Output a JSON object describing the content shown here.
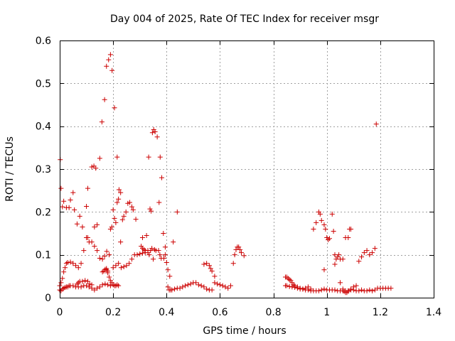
{
  "chart_data": {
    "type": "scatter",
    "title": "Day 004 of 2025, Rate Of TEC Index for receiver msgr",
    "xlabel": "GPS time / hours",
    "ylabel": "ROTI / TECUs",
    "xlim": [
      0,
      1.4
    ],
    "ylim": [
      0,
      0.6
    ],
    "xticks": [
      0,
      0.2,
      0.4,
      0.6,
      0.8,
      1,
      1.2,
      1.4
    ],
    "xtick_labels": [
      "0",
      "0.2",
      "0.4",
      "0.6",
      "0.8",
      "1",
      "1.2",
      "1.4"
    ],
    "yticks": [
      0,
      0.1,
      0.2,
      0.3,
      0.4,
      0.5,
      0.6
    ],
    "ytick_labels": [
      "0",
      "0.1",
      "0.2",
      "0.3",
      "0.4",
      "0.5",
      "0.6"
    ],
    "grid": true,
    "marker": "+",
    "marker_color": "#cc0000",
    "series": [
      {
        "name": "ROTI",
        "points": [
          [
            0.002,
            0.322
          ],
          [
            0.005,
            0.255
          ],
          [
            0.01,
            0.212
          ],
          [
            0.015,
            0.225
          ],
          [
            0.025,
            0.21
          ],
          [
            0.035,
            0.21
          ],
          [
            0.04,
            0.228
          ],
          [
            0.05,
            0.245
          ],
          [
            0.055,
            0.205
          ],
          [
            0.065,
            0.172
          ],
          [
            0.075,
            0.19
          ],
          [
            0.085,
            0.165
          ],
          [
            0.1,
            0.213
          ],
          [
            0.105,
            0.255
          ],
          [
            0.12,
            0.305
          ],
          [
            0.128,
            0.307
          ],
          [
            0.135,
            0.302
          ],
          [
            0.14,
            0.17
          ],
          [
            0.13,
            0.165
          ],
          [
            0.15,
            0.325
          ],
          [
            0.158,
            0.41
          ],
          [
            0.168,
            0.462
          ],
          [
            0.175,
            0.54
          ],
          [
            0.183,
            0.555
          ],
          [
            0.19,
            0.567
          ],
          [
            0.196,
            0.53
          ],
          [
            0.205,
            0.443
          ],
          [
            0.215,
            0.328
          ],
          [
            0.222,
            0.252
          ],
          [
            0.228,
            0.245
          ],
          [
            0.235,
            0.182
          ],
          [
            0.24,
            0.19
          ],
          [
            0.248,
            0.2
          ],
          [
            0.255,
            0.22
          ],
          [
            0.262,
            0.222
          ],
          [
            0.27,
            0.212
          ],
          [
            0.275,
            0.205
          ],
          [
            0.285,
            0.183
          ],
          [
            0.31,
            0.14
          ],
          [
            0.325,
            0.145
          ],
          [
            0.333,
            0.328
          ],
          [
            0.338,
            0.207
          ],
          [
            0.342,
            0.202
          ],
          [
            0.347,
            0.385
          ],
          [
            0.352,
            0.392
          ],
          [
            0.357,
            0.387
          ],
          [
            0.365,
            0.375
          ],
          [
            0.372,
            0.222
          ],
          [
            0.376,
            0.328
          ],
          [
            0.382,
            0.28
          ],
          [
            0.388,
            0.15
          ],
          [
            0.395,
            0.118
          ],
          [
            0.4,
            0.082
          ],
          [
            0.405,
            0.065
          ],
          [
            0.412,
            0.05
          ],
          [
            0.425,
            0.13
          ],
          [
            0.44,
            0.2
          ],
          [
            0.175,
            0.065
          ],
          [
            0.18,
            0.062
          ],
          [
            0.185,
            0.1
          ],
          [
            0.19,
            0.16
          ],
          [
            0.195,
            0.165
          ],
          [
            0.2,
            0.205
          ],
          [
            0.205,
            0.185
          ],
          [
            0.21,
            0.175
          ],
          [
            0.215,
            0.222
          ],
          [
            0.22,
            0.23
          ],
          [
            0.228,
            0.13
          ],
          [
            0.0,
            0.028
          ],
          [
            0.005,
            0.035
          ],
          [
            0.01,
            0.045
          ],
          [
            0.015,
            0.06
          ],
          [
            0.02,
            0.07
          ],
          [
            0.025,
            0.08
          ],
          [
            0.03,
            0.082
          ],
          [
            0.04,
            0.083
          ],
          [
            0.05,
            0.08
          ],
          [
            0.06,
            0.075
          ],
          [
            0.07,
            0.07
          ],
          [
            0.08,
            0.08
          ],
          [
            0.09,
            0.11
          ],
          [
            0.1,
            0.14
          ],
          [
            0.105,
            0.14
          ],
          [
            0.11,
            0.13
          ],
          [
            0.12,
            0.13
          ],
          [
            0.13,
            0.12
          ],
          [
            0.14,
            0.11
          ],
          [
            0.15,
            0.092
          ],
          [
            0.16,
            0.09
          ],
          [
            0.168,
            0.097
          ],
          [
            0.176,
            0.108
          ],
          [
            0.0,
            0.018
          ],
          [
            0.005,
            0.016
          ],
          [
            0.01,
            0.02
          ],
          [
            0.015,
            0.022
          ],
          [
            0.02,
            0.024
          ],
          [
            0.025,
            0.025
          ],
          [
            0.03,
            0.025
          ],
          [
            0.035,
            0.028
          ],
          [
            0.04,
            0.028
          ],
          [
            0.05,
            0.028
          ],
          [
            0.06,
            0.025
          ],
          [
            0.07,
            0.025
          ],
          [
            0.08,
            0.025
          ],
          [
            0.09,
            0.028
          ],
          [
            0.1,
            0.028
          ],
          [
            0.11,
            0.025
          ],
          [
            0.12,
            0.022
          ],
          [
            0.13,
            0.018
          ],
          [
            0.14,
            0.022
          ],
          [
            0.15,
            0.025
          ],
          [
            0.16,
            0.03
          ],
          [
            0.17,
            0.032
          ],
          [
            0.18,
            0.03
          ],
          [
            0.19,
            0.028
          ],
          [
            0.065,
            0.032
          ],
          [
            0.07,
            0.035
          ],
          [
            0.075,
            0.038
          ],
          [
            0.085,
            0.038
          ],
          [
            0.095,
            0.04
          ],
          [
            0.105,
            0.038
          ],
          [
            0.112,
            0.032
          ],
          [
            0.12,
            0.03
          ],
          [
            0.16,
            0.06
          ],
          [
            0.165,
            0.062
          ],
          [
            0.17,
            0.066
          ],
          [
            0.175,
            0.068
          ],
          [
            0.18,
            0.058
          ],
          [
            0.185,
            0.048
          ],
          [
            0.19,
            0.04
          ],
          [
            0.195,
            0.035
          ],
          [
            0.2,
            0.03
          ],
          [
            0.205,
            0.028
          ],
          [
            0.21,
            0.028
          ],
          [
            0.215,
            0.03
          ],
          [
            0.22,
            0.028
          ],
          [
            0.2,
            0.07
          ],
          [
            0.21,
            0.075
          ],
          [
            0.22,
            0.08
          ],
          [
            0.23,
            0.07
          ],
          [
            0.24,
            0.072
          ],
          [
            0.25,
            0.075
          ],
          [
            0.26,
            0.08
          ],
          [
            0.27,
            0.09
          ],
          [
            0.28,
            0.1
          ],
          [
            0.29,
            0.1
          ],
          [
            0.3,
            0.102
          ],
          [
            0.31,
            0.104
          ],
          [
            0.32,
            0.105
          ],
          [
            0.33,
            0.105
          ],
          [
            0.335,
            0.1
          ],
          [
            0.34,
            0.11
          ],
          [
            0.345,
            0.115
          ],
          [
            0.35,
            0.09
          ],
          [
            0.355,
            0.112
          ],
          [
            0.36,
            0.11
          ],
          [
            0.37,
            0.11
          ],
          [
            0.375,
            0.1
          ],
          [
            0.38,
            0.092
          ],
          [
            0.39,
            0.092
          ],
          [
            0.395,
            0.1
          ],
          [
            0.305,
            0.12
          ],
          [
            0.31,
            0.115
          ],
          [
            0.315,
            0.112
          ],
          [
            0.32,
            0.11
          ],
          [
            0.33,
            0.11
          ],
          [
            0.405,
            0.025
          ],
          [
            0.41,
            0.018
          ],
          [
            0.415,
            0.018
          ],
          [
            0.42,
            0.018
          ],
          [
            0.43,
            0.02
          ],
          [
            0.44,
            0.022
          ],
          [
            0.45,
            0.022
          ],
          [
            0.46,
            0.025
          ],
          [
            0.47,
            0.028
          ],
          [
            0.48,
            0.03
          ],
          [
            0.49,
            0.032
          ],
          [
            0.5,
            0.035
          ],
          [
            0.51,
            0.035
          ],
          [
            0.52,
            0.03
          ],
          [
            0.53,
            0.028
          ],
          [
            0.54,
            0.025
          ],
          [
            0.55,
            0.02
          ],
          [
            0.56,
            0.018
          ],
          [
            0.57,
            0.018
          ],
          [
            0.58,
            0.035
          ],
          [
            0.59,
            0.032
          ],
          [
            0.6,
            0.03
          ],
          [
            0.61,
            0.028
          ],
          [
            0.62,
            0.025
          ],
          [
            0.63,
            0.022
          ],
          [
            0.64,
            0.028
          ],
          [
            0.54,
            0.078
          ],
          [
            0.55,
            0.08
          ],
          [
            0.56,
            0.075
          ],
          [
            0.565,
            0.068
          ],
          [
            0.57,
            0.062
          ],
          [
            0.58,
            0.05
          ],
          [
            0.65,
            0.08
          ],
          [
            0.655,
            0.1
          ],
          [
            0.66,
            0.112
          ],
          [
            0.665,
            0.118
          ],
          [
            0.67,
            0.118
          ],
          [
            0.675,
            0.112
          ],
          [
            0.68,
            0.105
          ],
          [
            0.69,
            0.098
          ],
          [
            0.845,
            0.048
          ],
          [
            0.85,
            0.048
          ],
          [
            0.855,
            0.045
          ],
          [
            0.86,
            0.042
          ],
          [
            0.865,
            0.04
          ],
          [
            0.87,
            0.035
          ],
          [
            0.875,
            0.03
          ],
          [
            0.88,
            0.028
          ],
          [
            0.89,
            0.025
          ],
          [
            0.9,
            0.022
          ],
          [
            0.91,
            0.02
          ],
          [
            0.92,
            0.022
          ],
          [
            0.93,
            0.025
          ],
          [
            0.94,
            0.02
          ],
          [
            0.845,
            0.028
          ],
          [
            0.85,
            0.028
          ],
          [
            0.86,
            0.026
          ],
          [
            0.87,
            0.025
          ],
          [
            0.88,
            0.024
          ],
          [
            0.89,
            0.022
          ],
          [
            0.9,
            0.02
          ],
          [
            0.91,
            0.02
          ],
          [
            0.92,
            0.018
          ],
          [
            0.93,
            0.018
          ],
          [
            0.94,
            0.016
          ],
          [
            0.95,
            0.016
          ],
          [
            0.96,
            0.016
          ],
          [
            0.97,
            0.016
          ],
          [
            0.98,
            0.018
          ],
          [
            0.99,
            0.02
          ],
          [
            1.0,
            0.018
          ],
          [
            1.01,
            0.018
          ],
          [
            1.02,
            0.018
          ],
          [
            1.03,
            0.018
          ],
          [
            1.04,
            0.016
          ],
          [
            1.05,
            0.016
          ],
          [
            1.06,
            0.016
          ],
          [
            1.07,
            0.016
          ],
          [
            1.08,
            0.016
          ],
          [
            1.09,
            0.018
          ],
          [
            1.1,
            0.018
          ],
          [
            1.11,
            0.016
          ],
          [
            1.12,
            0.016
          ],
          [
            1.13,
            0.018
          ],
          [
            1.14,
            0.016
          ],
          [
            1.15,
            0.016
          ],
          [
            1.16,
            0.018
          ],
          [
            1.17,
            0.016
          ],
          [
            1.18,
            0.018
          ],
          [
            1.19,
            0.022
          ],
          [
            1.2,
            0.022
          ],
          [
            1.21,
            0.022
          ],
          [
            1.22,
            0.022
          ],
          [
            1.23,
            0.022
          ],
          [
            1.24,
            0.022
          ],
          [
            1.06,
            0.02
          ],
          [
            1.065,
            0.015
          ],
          [
            1.07,
            0.012
          ],
          [
            1.075,
            0.012
          ],
          [
            1.08,
            0.015
          ],
          [
            1.09,
            0.02
          ],
          [
            1.1,
            0.025
          ],
          [
            1.11,
            0.028
          ],
          [
            0.95,
            0.16
          ],
          [
            0.96,
            0.175
          ],
          [
            0.97,
            0.2
          ],
          [
            0.975,
            0.195
          ],
          [
            0.98,
            0.18
          ],
          [
            0.99,
            0.17
          ],
          [
            0.995,
            0.16
          ],
          [
            1.0,
            0.14
          ],
          [
            1.005,
            0.135
          ],
          [
            1.01,
            0.138
          ],
          [
            1.02,
            0.195
          ],
          [
            1.025,
            0.155
          ],
          [
            1.03,
            0.1
          ],
          [
            1.035,
            0.09
          ],
          [
            1.04,
            0.095
          ],
          [
            1.045,
            0.1
          ],
          [
            1.05,
            0.09
          ],
          [
            1.06,
            0.09
          ],
          [
            1.07,
            0.14
          ],
          [
            1.08,
            0.14
          ],
          [
            1.085,
            0.16
          ],
          [
            1.09,
            0.16
          ],
          [
            0.99,
            0.065
          ],
          [
            1.03,
            0.078
          ],
          [
            1.05,
            0.035
          ],
          [
            1.12,
            0.085
          ],
          [
            1.13,
            0.095
          ],
          [
            1.14,
            0.105
          ],
          [
            1.15,
            0.11
          ],
          [
            1.16,
            0.1
          ],
          [
            1.17,
            0.105
          ],
          [
            1.18,
            0.115
          ],
          [
            1.185,
            0.405
          ]
        ]
      }
    ]
  }
}
